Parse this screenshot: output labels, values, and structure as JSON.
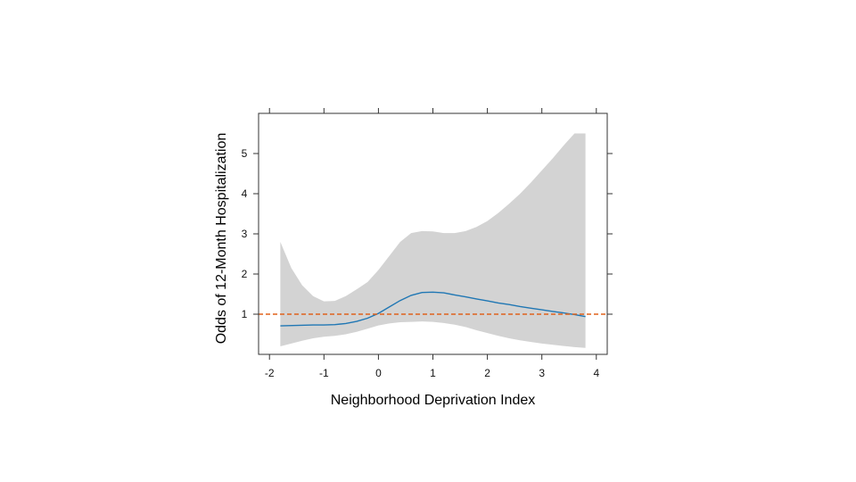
{
  "chart_data": {
    "type": "line",
    "title": "",
    "xlabel": "Neighborhood Deprivation Index",
    "ylabel": "Odds of 12-Month Hospitalization",
    "xlim": [
      -2.2,
      4.2
    ],
    "ylim": [
      0,
      6
    ],
    "xticks": [
      -2,
      -1,
      0,
      1,
      2,
      3,
      4
    ],
    "yticks": [
      1,
      2,
      3,
      4,
      5
    ],
    "grid": false,
    "legend": "none",
    "reference_line": {
      "y": 1,
      "style": "dashed",
      "color": "#e0621c"
    },
    "series": [
      {
        "color": "#2077b4",
        "x": [
          -1.8,
          -1.5,
          -1.2,
          -1.0,
          -0.8,
          -0.6,
          -0.4,
          -0.2,
          0.0,
          0.2,
          0.4,
          0.6,
          0.8,
          1.0,
          1.2,
          1.4,
          1.6,
          1.8,
          2.0,
          2.2,
          2.4,
          2.6,
          2.8,
          3.0,
          3.2,
          3.4,
          3.6,
          3.8
        ],
        "y": [
          0.71,
          0.72,
          0.73,
          0.73,
          0.74,
          0.77,
          0.82,
          0.9,
          1.02,
          1.18,
          1.34,
          1.47,
          1.54,
          1.55,
          1.53,
          1.48,
          1.43,
          1.38,
          1.33,
          1.28,
          1.24,
          1.19,
          1.15,
          1.11,
          1.07,
          1.03,
          0.99,
          0.94
        ]
      }
    ],
    "confidence_band": {
      "color": "#d3d3d3",
      "x": [
        -1.8,
        -1.6,
        -1.4,
        -1.2,
        -1.0,
        -0.8,
        -0.6,
        -0.4,
        -0.2,
        0.0,
        0.2,
        0.4,
        0.6,
        0.8,
        1.0,
        1.2,
        1.4,
        1.6,
        1.8,
        2.0,
        2.2,
        2.4,
        2.6,
        2.8,
        3.0,
        3.2,
        3.4,
        3.6,
        3.8
      ],
      "upper": [
        2.8,
        2.15,
        1.72,
        1.45,
        1.32,
        1.33,
        1.45,
        1.62,
        1.8,
        2.1,
        2.45,
        2.8,
        3.02,
        3.07,
        3.06,
        3.02,
        3.02,
        3.07,
        3.17,
        3.32,
        3.52,
        3.75,
        4.0,
        4.28,
        4.58,
        4.88,
        5.2,
        5.5,
        5.5
      ],
      "lower": [
        0.2,
        0.27,
        0.34,
        0.4,
        0.44,
        0.46,
        0.5,
        0.56,
        0.64,
        0.72,
        0.77,
        0.8,
        0.81,
        0.82,
        0.81,
        0.78,
        0.74,
        0.68,
        0.6,
        0.53,
        0.46,
        0.4,
        0.35,
        0.31,
        0.27,
        0.24,
        0.21,
        0.18,
        0.16
      ]
    }
  }
}
